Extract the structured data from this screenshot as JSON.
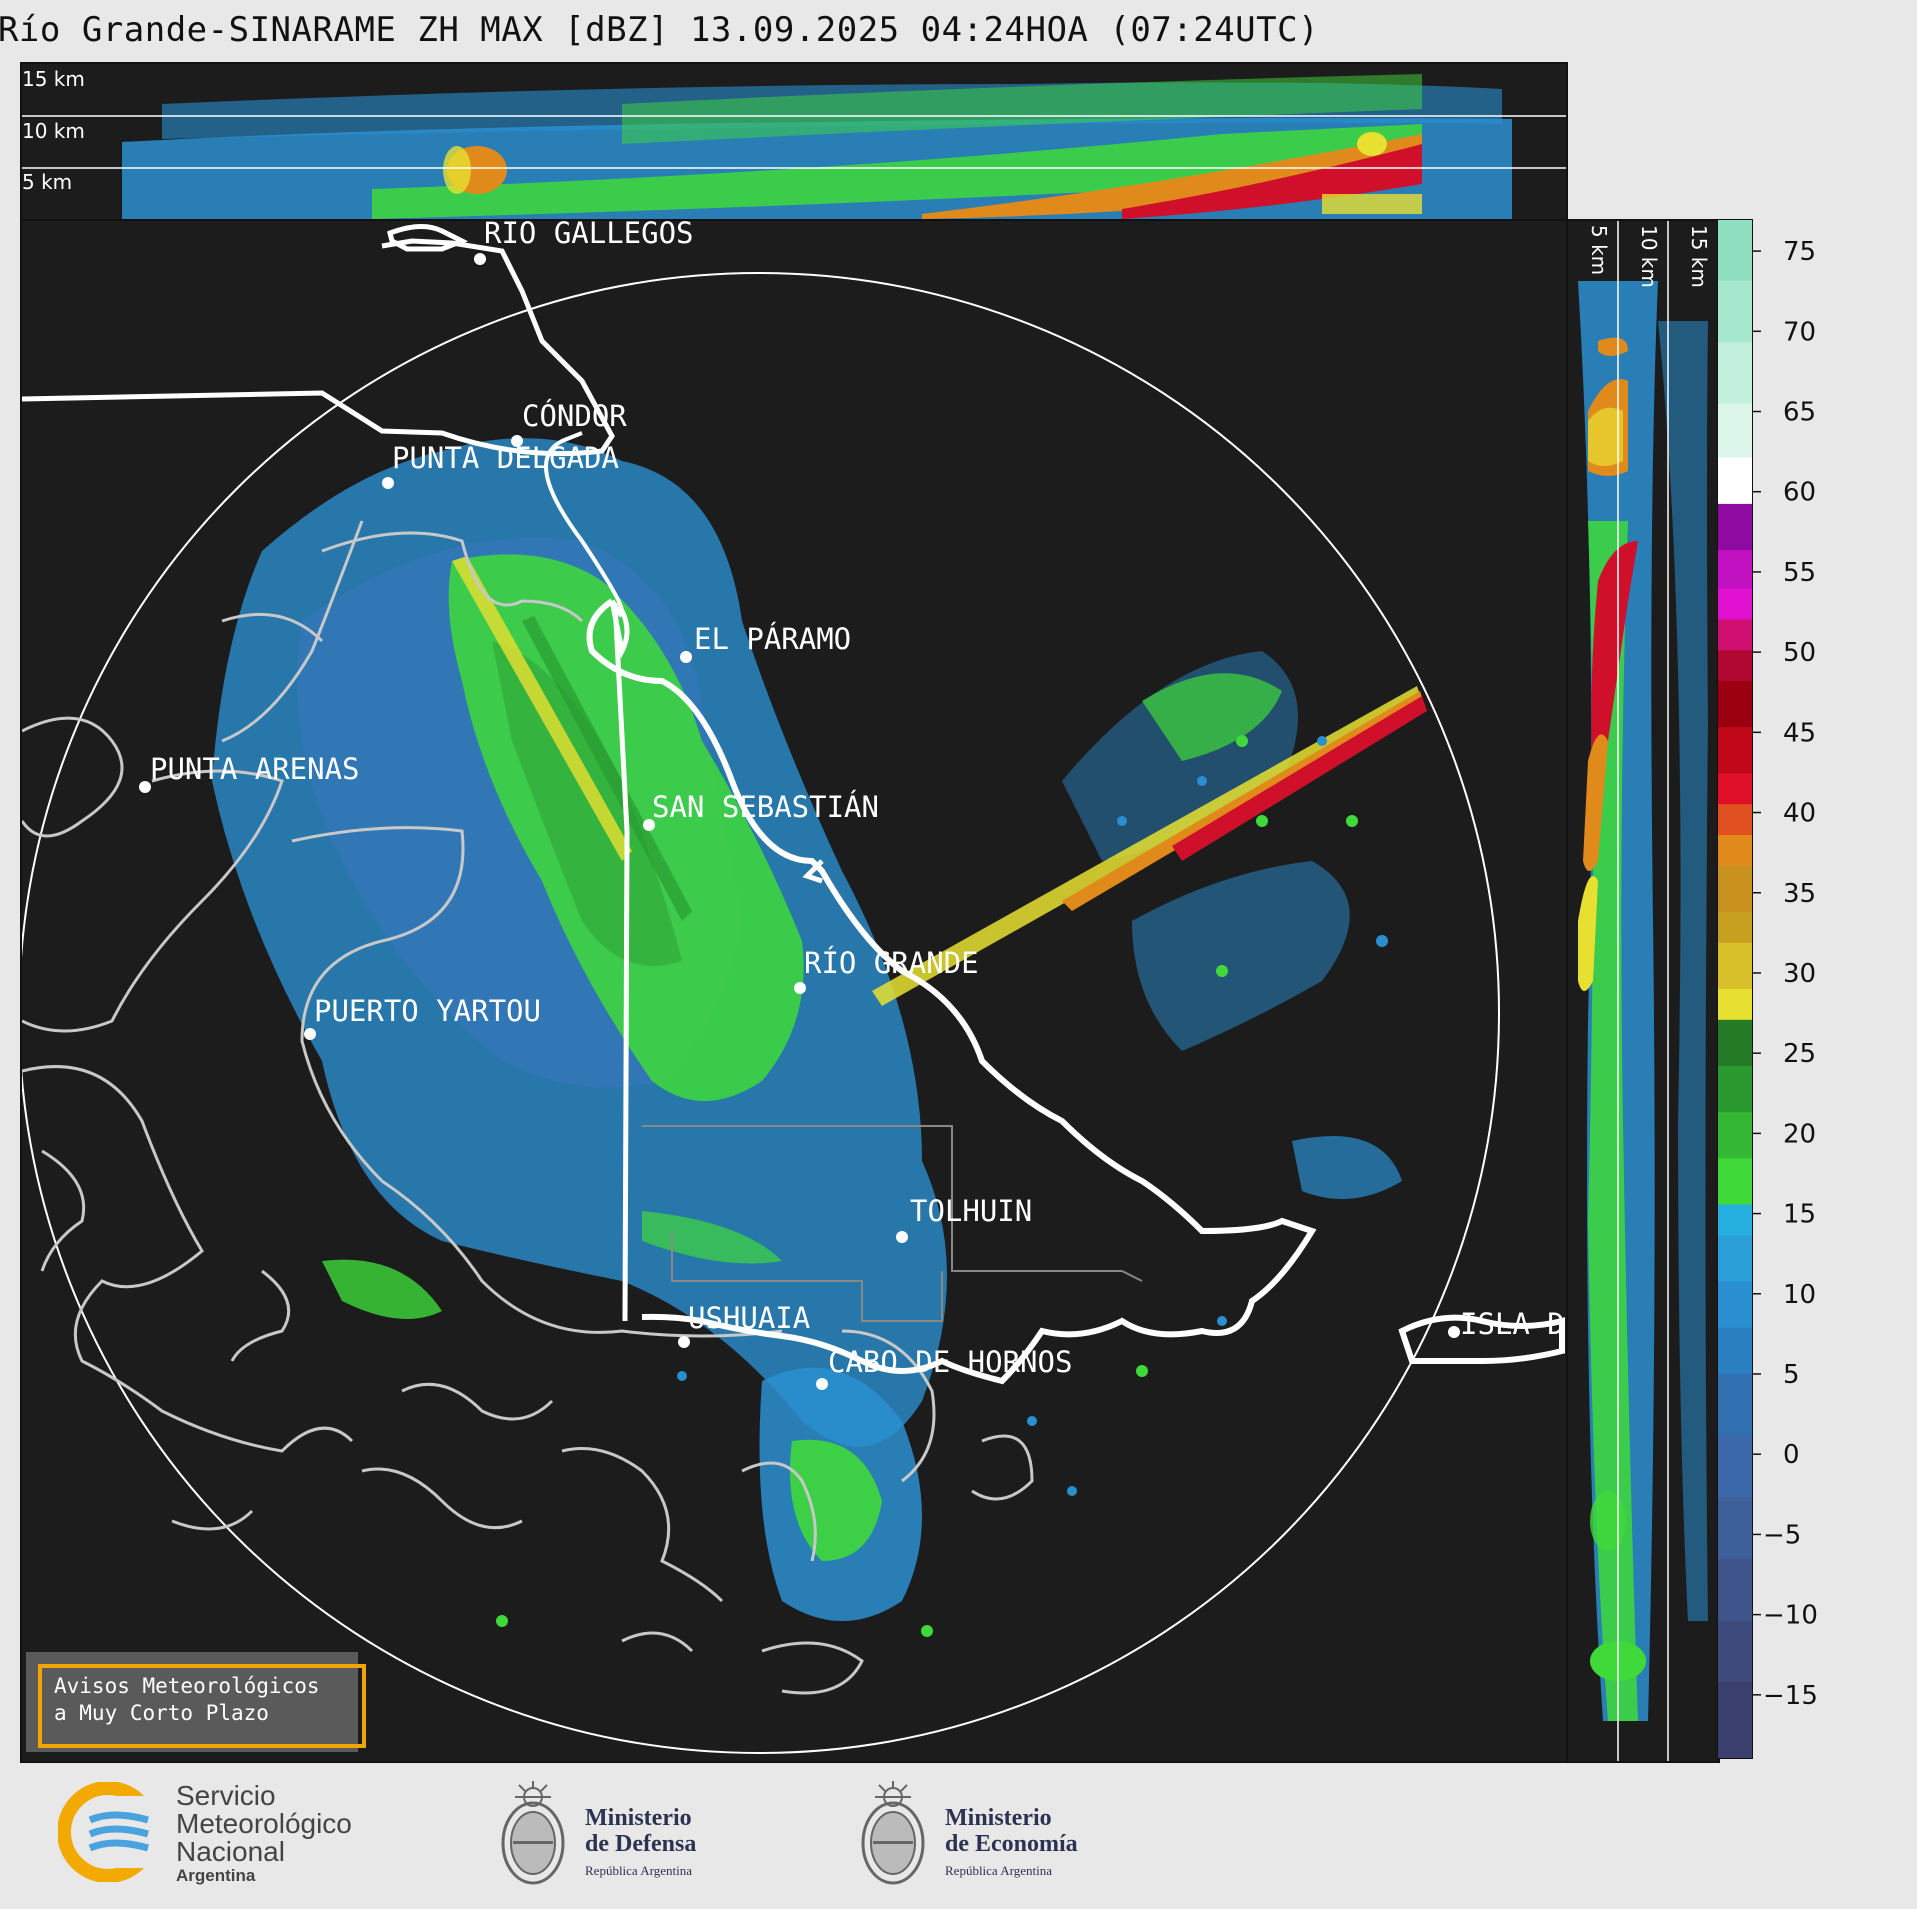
{
  "title": "Río Grande-SINARAME ZH MAX [dBZ] 13.09.2025 04:24HOA (07:24UTC)",
  "top_panel": {
    "height_labels": [
      "15 km",
      "10 km",
      "5 km"
    ]
  },
  "right_panel": {
    "height_labels": [
      "5 km",
      "10 km",
      "15 km"
    ]
  },
  "map": {
    "cities": [
      {
        "name": "RÍO GALLEGOS"
      },
      {
        "name": "CÓNDOR"
      },
      {
        "name": "PUNTA DELGADA"
      },
      {
        "name": "EL PÁRAMO"
      },
      {
        "name": "PUNTA ARENAS"
      },
      {
        "name": "SAN SEBASTIÁN"
      },
      {
        "name": "RÍO GRANDE"
      },
      {
        "name": "PUERTO YARTOU"
      },
      {
        "name": "TOLHUIN"
      },
      {
        "name": "USHUAIA"
      },
      {
        "name": "CABO DE HORNOS"
      },
      {
        "name": "ISLA DE LOS ESTADOS"
      }
    ]
  },
  "colorbar": {
    "units": "dBZ",
    "ticks": [
      "75",
      "70",
      "65",
      "60",
      "55",
      "50",
      "45",
      "40",
      "35",
      "30",
      "25",
      "20",
      "15",
      "10",
      "5",
      "0",
      "−5",
      "−10",
      "−15"
    ],
    "colors": {
      "low": "#3b3f6e",
      "blue": "#2a8fd0",
      "green": "#3fd93a",
      "yellow": "#e8e030",
      "orange": "#e08a1c",
      "red": "#d0102a",
      "magenta": "#e010d0",
      "white": "#ffffff",
      "mint": "#8fe0c0"
    }
  },
  "warning": {
    "line1": "Avisos Meteorológicos",
    "line2": "a Muy Corto Plazo"
  },
  "footer": {
    "smn": {
      "line1": "Servicio",
      "line2": "Meteorológico",
      "line3": "Nacional",
      "line4": "Argentina"
    },
    "defensa": {
      "line1": "Ministerio",
      "line2": "de Defensa",
      "line3": "República Argentina"
    },
    "economia": {
      "line1": "Ministerio",
      "line2": "de Economía",
      "line3": "República Argentina"
    }
  }
}
